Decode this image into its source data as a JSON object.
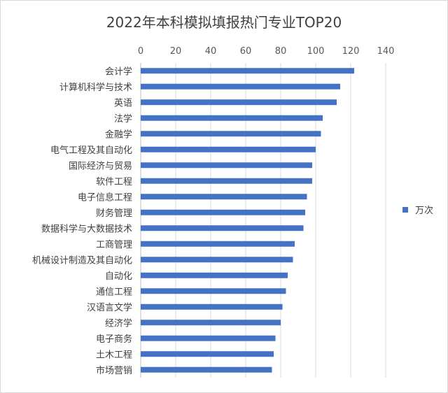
{
  "chart_data": {
    "type": "bar",
    "orientation": "horizontal",
    "title": "2022年本科模拟填报热门专业TOP20",
    "categories": [
      "会计学",
      "计算机科学与技术",
      "英语",
      "法学",
      "金融学",
      "电气工程及其自动化",
      "国际经济与贸易",
      "软件工程",
      "电子信息工程",
      "财务管理",
      "数据科学与大数据技术",
      "工商管理",
      "机械设计制造及其自动化",
      "自动化",
      "通信工程",
      "汉语言文学",
      "经济学",
      "电子商务",
      "土木工程",
      "市场营销"
    ],
    "series": [
      {
        "name": "万次",
        "values": [
          122,
          114,
          112,
          104,
          103,
          100,
          98,
          98,
          95,
          94,
          93,
          88,
          87,
          84,
          83,
          81,
          80,
          77,
          76,
          75
        ],
        "color": "#4472c4"
      }
    ],
    "xlim": [
      0,
      140
    ],
    "xticks": [
      0,
      20,
      40,
      60,
      80,
      100,
      120,
      140
    ],
    "grid": true,
    "legend": "right",
    "xlabel": "",
    "ylabel": ""
  }
}
